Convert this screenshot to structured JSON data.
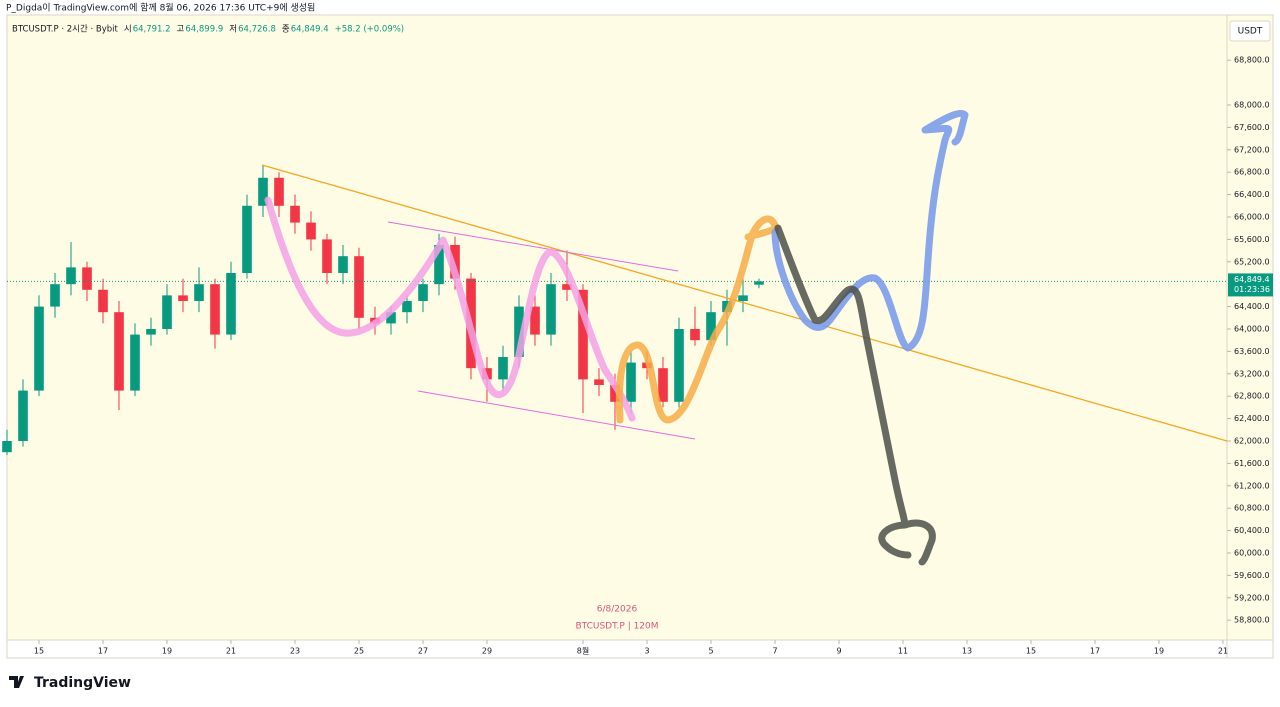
{
  "header": "P_Digda이 TradingView.com에 함께 8월 06, 2026 17:36 UTC+9에 생성됨",
  "legend": {
    "symbol": "BTCUSDT.P · 2시간 · Bybit",
    "open_label": "시",
    "open": "64,791.2",
    "high_label": "고",
    "high": "64,899.9",
    "low_label": "저",
    "low": "64,726.8",
    "close_label": "종",
    "close": "64,849.4",
    "change": "+58.2 (+0.09%)"
  },
  "currency": "USDT",
  "watermark": {
    "date": "6/8/2026",
    "symbol": "BTCUSDT.P | 120M"
  },
  "footer": "TradingView",
  "chart_data": {
    "type": "candlestick",
    "up_color": "#089981",
    "down_color": "#f23645",
    "x": [
      -2,
      -1,
      0,
      1,
      2,
      3,
      4,
      5,
      6,
      7,
      8,
      9,
      10,
      11,
      12,
      13,
      14,
      15,
      16,
      17,
      18,
      19,
      20,
      21,
      22,
      23,
      24,
      25,
      26,
      27,
      28,
      29,
      30,
      31,
      32,
      33,
      34,
      35,
      36,
      37,
      38,
      39,
      40,
      41,
      42,
      43,
      44,
      45
    ],
    "open": [
      61800,
      62000,
      62900,
      64400,
      64800,
      65100,
      64700,
      64300,
      62900,
      63900,
      64000,
      64600,
      64500,
      64800,
      63900,
      65000,
      66200,
      66700,
      66200,
      65900,
      65600,
      65000,
      65300,
      64200,
      64100,
      64300,
      64500,
      64800,
      65500,
      64900,
      63300,
      63100,
      63500,
      64400,
      63900,
      64800,
      64700,
      63100,
      63000,
      62700,
      63400,
      63300,
      62700,
      64000,
      63800,
      64300,
      64500,
      64791.2
    ],
    "high": [
      62200,
      63100,
      64600,
      65000,
      65550,
      65200,
      64900,
      64500,
      64100,
      64200,
      64800,
      64900,
      65100,
      64900,
      65200,
      66400,
      66930,
      66800,
      66400,
      66100,
      65700,
      65500,
      65450,
      64400,
      64400,
      64600,
      64900,
      65700,
      65650,
      65000,
      63500,
      63700,
      64600,
      64600,
      65000,
      65400,
      64800,
      63300,
      63200,
      63600,
      63600,
      63500,
      64200,
      64400,
      64500,
      64700,
      64900,
      64899.9
    ],
    "low": [
      61750,
      61900,
      62800,
      64200,
      64600,
      64500,
      64100,
      62550,
      62800,
      63700,
      63900,
      64300,
      64300,
      63650,
      63800,
      64900,
      66000,
      66000,
      65700,
      65400,
      64800,
      64800,
      64000,
      63900,
      63900,
      64100,
      64300,
      64600,
      64700,
      63100,
      62700,
      62900,
      63300,
      63700,
      63700,
      64500,
      62500,
      62800,
      62200,
      62500,
      63100,
      62600,
      62600,
      63700,
      63700,
      63700,
      64300,
      64726.8
    ],
    "close": [
      62000,
      62900,
      64400,
      64800,
      65100,
      64700,
      64300,
      62900,
      63900,
      64000,
      64600,
      64500,
      64800,
      63900,
      65000,
      66200,
      66700,
      66200,
      65900,
      65600,
      65000,
      65300,
      64200,
      64100,
      64300,
      64500,
      64800,
      65500,
      64900,
      63300,
      63100,
      63500,
      64400,
      63900,
      64800,
      64700,
      63100,
      63000,
      62700,
      63400,
      63300,
      62700,
      64000,
      63800,
      64300,
      64500,
      64600,
      64849.4
    ],
    "xlim": [
      -2,
      74.25
    ],
    "ylim": [
      58446,
      69607
    ],
    "xticks": [
      {
        "value": 0,
        "label": "15"
      },
      {
        "value": 4,
        "label": "17"
      },
      {
        "value": 8,
        "label": "19"
      },
      {
        "value": 12,
        "label": "21"
      },
      {
        "value": 16,
        "label": "23"
      },
      {
        "value": 20,
        "label": "25"
      },
      {
        "value": 24,
        "label": "27"
      },
      {
        "value": 28,
        "label": "29"
      },
      {
        "value": 34,
        "label": "8월"
      },
      {
        "value": 38,
        "label": "3"
      },
      {
        "value": 42,
        "label": "5"
      },
      {
        "value": 46,
        "label": "7"
      },
      {
        "value": 50,
        "label": "9"
      },
      {
        "value": 54,
        "label": "11"
      },
      {
        "value": 58,
        "label": "13"
      },
      {
        "value": 62,
        "label": "15"
      },
      {
        "value": 66,
        "label": "17"
      },
      {
        "value": 70,
        "label": "19"
      },
      {
        "value": 74,
        "label": "21"
      }
    ],
    "yticks": [
      {
        "value": 68800,
        "label": "68,800.0"
      },
      {
        "value": 68000,
        "label": "68,000.0"
      },
      {
        "value": 67600,
        "label": "67,600.0"
      },
      {
        "value": 67200,
        "label": "67,200.0"
      },
      {
        "value": 66800,
        "label": "66,800.0"
      },
      {
        "value": 66400,
        "label": "66,400.0"
      },
      {
        "value": 66000,
        "label": "66,000.0"
      },
      {
        "value": 65600,
        "label": "65,600.0"
      },
      {
        "value": 65200,
        "label": "65,200.0"
      },
      {
        "value": 64400,
        "label": "64,400.0"
      },
      {
        "value": 64000,
        "label": "64,000.0"
      },
      {
        "value": 63600,
        "label": "63,600.0"
      },
      {
        "value": 63200,
        "label": "63,200.0"
      },
      {
        "value": 62800,
        "label": "62,800.0"
      },
      {
        "value": 62400,
        "label": "62,400.0"
      },
      {
        "value": 62000,
        "label": "62,000.0"
      },
      {
        "value": 61600,
        "label": "61,600.0"
      },
      {
        "value": 61200,
        "label": "61,200.0"
      },
      {
        "value": 60800,
        "label": "60,800.0"
      },
      {
        "value": 60400,
        "label": "60,400.0"
      },
      {
        "value": 60000,
        "label": "60,000.0"
      },
      {
        "value": 59600,
        "label": "59,600.0"
      },
      {
        "value": 59200,
        "label": "59,200.0"
      },
      {
        "value": 58800,
        "label": "58,800.0"
      }
    ],
    "last_price": {
      "value": 64849.4,
      "label": "64,849.4"
    },
    "countdown": "01:23:36"
  }
}
